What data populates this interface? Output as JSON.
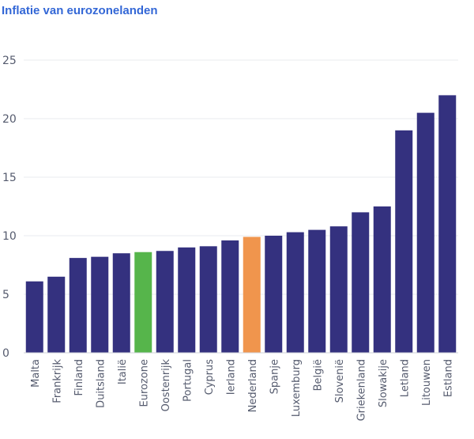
{
  "chart_data": {
    "type": "bar",
    "title": "Inflatie van eurozonelanden",
    "xlabel": "",
    "ylabel": "",
    "ylim": [
      0,
      25
    ],
    "yticks": [
      0,
      5,
      10,
      15,
      20,
      25
    ],
    "grid": true,
    "categories": [
      "Malta",
      "Frankrijk",
      "Finland",
      "Duitsland",
      "Italië",
      "Eurozone",
      "Oostenrijk",
      "Portugal",
      "Cyprus",
      "Ierland",
      "Nederland",
      "Spanje",
      "Luxemburg",
      "België",
      "Slovenië",
      "Griekenland",
      "Slowakije",
      "Letland",
      "Litouwen",
      "Estland"
    ],
    "values": [
      6.1,
      6.5,
      8.1,
      8.2,
      8.5,
      8.6,
      8.7,
      9.0,
      9.1,
      9.6,
      9.9,
      10.0,
      10.3,
      10.5,
      10.8,
      12.0,
      12.5,
      19.0,
      20.5,
      22.0
    ],
    "colors": {
      "default": "#34317f",
      "Eurozone": "#56b54b",
      "Nederland": "#f0954d"
    }
  }
}
